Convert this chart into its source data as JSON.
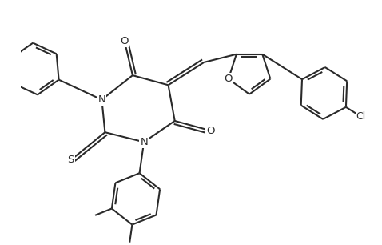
{
  "background_color": "#ffffff",
  "line_color": "#2a2a2a",
  "line_width": 1.5,
  "fig_width": 4.78,
  "fig_height": 3.06,
  "dpi": 100,
  "font_size": 9.5,
  "xlim": [
    -1.0,
    9.5
  ],
  "ylim": [
    -3.2,
    4.2
  ]
}
